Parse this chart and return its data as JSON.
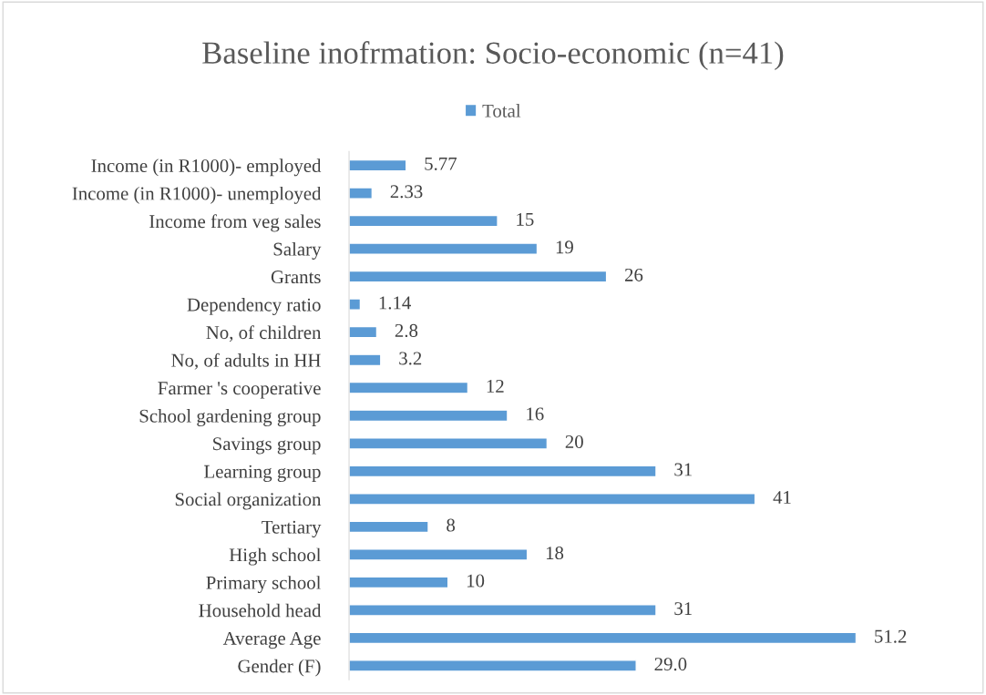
{
  "chart_data": {
    "type": "bar",
    "orientation": "horizontal",
    "title": "Baseline inofrmation: Socio-economic (n=41)",
    "categories": [
      "Income (in R1000)- employed",
      "Income (in R1000)- unemployed",
      "Income from veg sales",
      "Salary",
      "Grants",
      "Dependency ratio",
      "No, of children",
      "No, of adults in HH",
      "Farmer 's cooperative",
      "School gardening group",
      "Savings group",
      "Learning group",
      "Social organization",
      "Tertiary",
      "High school",
      "Primary school",
      "Household head",
      "Average Age",
      "Gender (F)"
    ],
    "series": [
      {
        "name": "Total",
        "color": "#5b9bd5",
        "values": [
          5.77,
          2.33,
          15,
          19,
          26,
          1.14,
          2.8,
          3.2,
          12,
          16,
          20,
          31,
          41,
          8,
          18,
          10,
          31,
          51.2,
          29.0
        ],
        "value_labels": [
          "5.77",
          "2.33",
          "15",
          "19",
          "26",
          "1.14",
          "2.8",
          "3.2",
          "12",
          "16",
          "20",
          "31",
          "41",
          "8",
          "18",
          "10",
          "31",
          "51.2",
          "29.0"
        ]
      }
    ],
    "tick_labels": "y",
    "grid": false,
    "legend": "top"
  }
}
